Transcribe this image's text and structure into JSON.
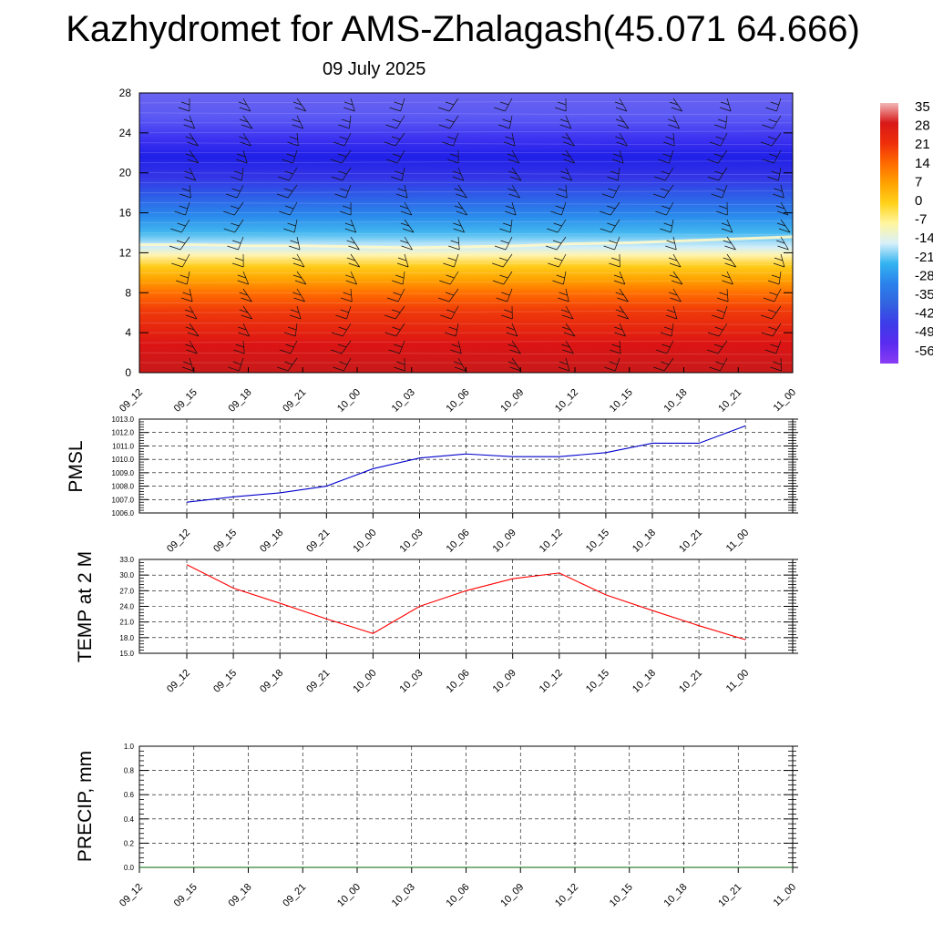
{
  "header": {
    "title": "Kazhydromet for AMS-Zhalagash(45.071 64.666)",
    "date": "09 July 2025"
  },
  "colorbar": {
    "labels": [
      "35",
      "28",
      "21",
      "14",
      "7",
      "0",
      "-7",
      "-14",
      "-21",
      "-28",
      "-35",
      "-42",
      "-49",
      "-56"
    ],
    "colors": [
      "#f2b8b8",
      "#d81818",
      "#ee2e0a",
      "#ff6a00",
      "#ffa200",
      "#ffd21a",
      "#fff6a0",
      "#d8f0fa",
      "#34b4f0",
      "#2a82ec",
      "#3264e0",
      "#3c3ce8",
      "#5a2cf0",
      "#8a3cf4"
    ]
  },
  "chart_data": [
    {
      "type": "heatmap",
      "title": "",
      "xlabel": "",
      "ylabel": "",
      "categories": [
        "09_12",
        "09_15",
        "09_18",
        "09_21",
        "10_00",
        "10_03",
        "10_06",
        "10_09",
        "10_12",
        "10_15",
        "10_18",
        "10_21",
        "11_00"
      ],
      "yticks": [
        "0",
        "4",
        "8",
        "12",
        "16",
        "20",
        "24",
        "28"
      ],
      "ylim": [
        0,
        28
      ],
      "zero_isotherm_height": [
        12.8,
        12.8,
        12.7,
        12.7,
        12.6,
        12.5,
        12.6,
        12.7,
        12.9,
        13.0,
        13.2,
        13.4,
        13.6
      ],
      "colorbar_range": [
        -56,
        35
      ],
      "overlay": "wind barbs"
    },
    {
      "type": "line",
      "ylabel": "PMSL",
      "categories": [
        "09_12",
        "09_15",
        "09_18",
        "09_21",
        "10_00",
        "10_03",
        "10_06",
        "10_09",
        "10_12",
        "10_15",
        "10_18",
        "10_21",
        "11_00"
      ],
      "yticks": [
        "1006.0",
        "1007.0",
        "1008.0",
        "1009.0",
        "1010.0",
        "1011.0",
        "1012.0",
        "1013.0"
      ],
      "ylim": [
        1006,
        1013
      ],
      "grid": true,
      "series": [
        {
          "color": "#0000cc",
          "values": [
            1006.8,
            1007.2,
            1007.5,
            1008.0,
            1009.3,
            1010.1,
            1010.4,
            1010.2,
            1010.2,
            1010.5,
            1011.2,
            1011.2,
            1012.5
          ]
        }
      ]
    },
    {
      "type": "line",
      "ylabel": "TEMP at 2 M",
      "categories": [
        "09_12",
        "09_15",
        "09_18",
        "09_21",
        "10_00",
        "10_03",
        "10_06",
        "10_09",
        "10_12",
        "10_15",
        "10_18",
        "10_21",
        "11_00"
      ],
      "yticks": [
        "15.0",
        "18.0",
        "21.0",
        "24.0",
        "27.0",
        "30.0",
        "33.0"
      ],
      "ylim": [
        15,
        33
      ],
      "grid": true,
      "series": [
        {
          "color": "#ff0000",
          "values": [
            32.0,
            27.5,
            24.6,
            21.6,
            18.8,
            24.0,
            27.0,
            29.3,
            30.4,
            26.2,
            23.2,
            20.3,
            17.6
          ]
        }
      ]
    },
    {
      "type": "line",
      "ylabel": "PRECIP, mm",
      "categories": [
        "09_12",
        "09_15",
        "09_18",
        "09_21",
        "10_00",
        "10_03",
        "10_06",
        "10_09",
        "10_12",
        "10_15",
        "10_18",
        "10_21",
        "11_00"
      ],
      "yticks": [
        "0.0",
        "0.2",
        "0.4",
        "0.6",
        "0.8",
        "1.0"
      ],
      "ylim": [
        0,
        1
      ],
      "grid": true,
      "series": [
        {
          "color": "#006400",
          "values": [
            0,
            0,
            0,
            0,
            0,
            0,
            0,
            0,
            0,
            0,
            0,
            0,
            0
          ]
        }
      ]
    }
  ]
}
